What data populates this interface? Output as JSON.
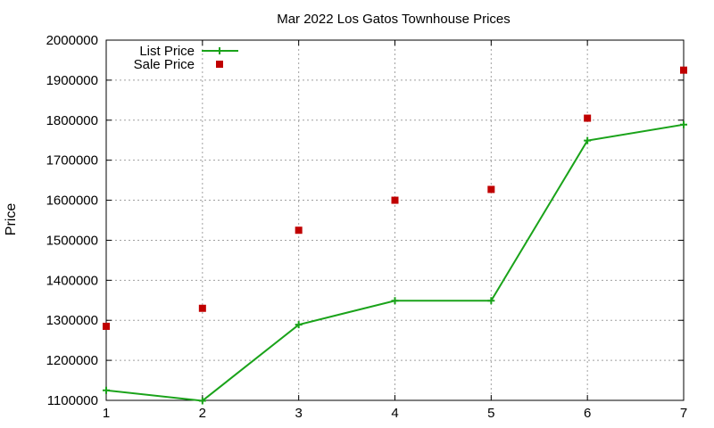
{
  "chart_data": {
    "type": "line",
    "title": "Mar 2022 Los Gatos Townhouse Prices",
    "xlabel": "",
    "ylabel": "Price",
    "x": [
      1,
      2,
      3,
      4,
      5,
      6,
      7
    ],
    "xlim": [
      1,
      7
    ],
    "ylim": [
      1100000,
      2000000
    ],
    "x_ticks": [
      "1",
      "2",
      "3",
      "4",
      "5",
      "6",
      "7"
    ],
    "y_ticks": [
      "1100000",
      "1200000",
      "1300000",
      "1400000",
      "1500000",
      "1600000",
      "1700000",
      "1800000",
      "1900000",
      "2000000"
    ],
    "grid": true,
    "legend_position": "top-left",
    "series": [
      {
        "name": "List Price",
        "style": "line-with-plus-markers",
        "color": "#1aa31a",
        "values": [
          1125000,
          1099000,
          1289000,
          1349000,
          1349000,
          1749000,
          1789000
        ]
      },
      {
        "name": "Sale Price",
        "style": "square-markers",
        "color": "#c00000",
        "values": [
          1285000,
          1330000,
          1525000,
          1600000,
          1627000,
          1805000,
          1925000
        ]
      }
    ]
  }
}
